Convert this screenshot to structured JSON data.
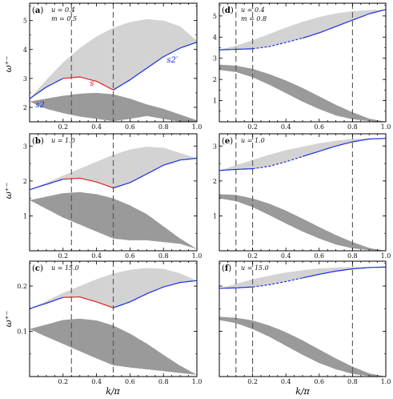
{
  "chart_data": {
    "type": "area",
    "x_label": "k/π",
    "y_label": "ω⁺⁻",
    "xlim": [
      0,
      1
    ],
    "x_ticks": [
      "0.2",
      "0.4",
      "0.6",
      "0.8",
      "1.0"
    ],
    "colors": {
      "upper_band": "#d3d3d3",
      "lower_band": "#9a9a9a",
      "boundary_red": "#e0221c",
      "boundary_blue": "#1a2ee0",
      "dashed_lines": "#555555"
    },
    "panels": [
      {
        "label": "(a)",
        "param_lines": [
          "u = 0.4",
          "m = 0.5"
        ],
        "ylim": [
          1.5,
          5.6
        ],
        "y_ticks": [
          2,
          3,
          4,
          5
        ],
        "vlines": [
          0.25,
          0.5
        ],
        "upper_band": {
          "x": [
            0.0,
            0.1,
            0.2,
            0.3,
            0.4,
            0.5,
            0.6,
            0.7,
            0.8,
            0.9,
            1.0
          ],
          "lower": [
            2.3,
            2.7,
            3.0,
            3.05,
            2.9,
            2.6,
            2.95,
            3.35,
            3.75,
            4.05,
            4.25
          ],
          "upper": [
            2.3,
            2.95,
            3.55,
            4.05,
            4.45,
            4.75,
            4.95,
            5.05,
            5.0,
            4.8,
            4.3
          ]
        },
        "lower_band": {
          "x": [
            0.0,
            0.1,
            0.2,
            0.3,
            0.4,
            0.5,
            0.6,
            0.7,
            0.8,
            0.9,
            1.0
          ],
          "lower": [
            2.2,
            1.95,
            1.8,
            1.68,
            1.6,
            1.52,
            1.6,
            1.7,
            1.6,
            1.5,
            1.5
          ],
          "upper": [
            2.2,
            2.3,
            2.4,
            2.47,
            2.5,
            2.45,
            2.3,
            2.1,
            1.95,
            1.75,
            1.55
          ]
        },
        "annotations": [
          {
            "text": "s2",
            "color": "blue"
          },
          {
            "text": "s",
            "color": "red"
          },
          {
            "text": "s2′",
            "color": "blue"
          }
        ]
      },
      {
        "label": "(b)",
        "param_lines": [
          "u = 1.0"
        ],
        "ylim": [
          0.0,
          3.35
        ],
        "y_ticks": [
          1,
          2,
          3
        ],
        "vlines": [
          0.25,
          0.5
        ],
        "upper_band": {
          "x": [
            0.0,
            0.1,
            0.2,
            0.3,
            0.4,
            0.5,
            0.6,
            0.7,
            0.8,
            0.9,
            1.0
          ],
          "lower": [
            1.75,
            1.9,
            2.05,
            2.08,
            1.97,
            1.8,
            1.95,
            2.2,
            2.45,
            2.6,
            2.65
          ],
          "upper": [
            1.75,
            1.95,
            2.15,
            2.35,
            2.55,
            2.75,
            2.9,
            2.98,
            2.95,
            2.8,
            2.65
          ]
        },
        "lower_band": {
          "x": [
            0.0,
            0.1,
            0.2,
            0.3,
            0.4,
            0.5,
            0.6,
            0.7,
            0.8,
            0.9,
            1.0
          ],
          "lower": [
            1.45,
            1.2,
            0.95,
            0.75,
            0.55,
            0.35,
            0.3,
            0.3,
            0.25,
            0.2,
            0.05
          ],
          "upper": [
            1.45,
            1.55,
            1.65,
            1.68,
            1.62,
            1.5,
            1.3,
            1.05,
            0.7,
            0.35,
            0.05
          ]
        },
        "annotations": []
      },
      {
        "label": "(c)",
        "param_lines": [
          "u = 15.0"
        ],
        "ylim": [
          0.0,
          0.255
        ],
        "y_ticks": [
          0.1,
          0.2
        ],
        "y_tick_labels": [
          "0.1",
          "0.2"
        ],
        "vlines": [
          0.25,
          0.5
        ],
        "upper_band": {
          "x": [
            0.0,
            0.1,
            0.2,
            0.3,
            0.4,
            0.5,
            0.6,
            0.7,
            0.8,
            0.9,
            1.0
          ],
          "lower": [
            0.15,
            0.162,
            0.175,
            0.176,
            0.165,
            0.152,
            0.165,
            0.183,
            0.198,
            0.208,
            0.212
          ],
          "upper": [
            0.15,
            0.167,
            0.185,
            0.2,
            0.215,
            0.228,
            0.236,
            0.24,
            0.238,
            0.228,
            0.212
          ]
        },
        "lower_band": {
          "x": [
            0.0,
            0.1,
            0.2,
            0.3,
            0.4,
            0.5,
            0.6,
            0.7,
            0.8,
            0.9,
            1.0
          ],
          "lower": [
            0.105,
            0.088,
            0.072,
            0.056,
            0.04,
            0.025,
            0.02,
            0.016,
            0.012,
            0.008,
            0.004
          ],
          "upper": [
            0.105,
            0.115,
            0.125,
            0.128,
            0.124,
            0.113,
            0.095,
            0.073,
            0.048,
            0.024,
            0.004
          ]
        },
        "annotations": []
      },
      {
        "label": "(d)",
        "param_lines": [
          "u = 0.4",
          "m = 0.8"
        ],
        "ylim": [
          0.0,
          5.6
        ],
        "y_ticks": [
          1,
          2,
          3,
          4,
          5
        ],
        "vlines": [
          0.1,
          0.2,
          0.8
        ],
        "upper_band": {
          "x": [
            0.0,
            0.1,
            0.2,
            0.3,
            0.4,
            0.5,
            0.6,
            0.7,
            0.8,
            0.9,
            1.0
          ],
          "lower": [
            3.4,
            3.42,
            3.45,
            3.55,
            3.75,
            3.95,
            4.2,
            4.5,
            4.8,
            5.1,
            5.3
          ],
          "upper": [
            3.4,
            3.6,
            3.85,
            4.15,
            4.45,
            4.72,
            4.95,
            5.12,
            5.22,
            5.28,
            5.3
          ]
        },
        "lower_band": {
          "x": [
            0.0,
            0.1,
            0.2,
            0.3,
            0.4,
            0.5,
            0.6,
            0.7,
            0.8,
            0.9,
            1.0
          ],
          "lower": [
            2.45,
            2.35,
            2.1,
            1.75,
            1.35,
            0.95,
            0.6,
            0.3,
            0.12,
            0.03,
            0.0
          ],
          "upper": [
            2.7,
            2.65,
            2.5,
            2.25,
            1.95,
            1.6,
            1.2,
            0.8,
            0.45,
            0.15,
            0.0
          ]
        },
        "annotations": []
      },
      {
        "label": "(e)",
        "param_lines": [
          "u = 1.0"
        ],
        "ylim": [
          0.0,
          3.35
        ],
        "y_ticks": [
          1,
          2,
          3
        ],
        "vlines": [
          0.1,
          0.2,
          0.8
        ],
        "upper_band": {
          "x": [
            0.0,
            0.1,
            0.2,
            0.3,
            0.4,
            0.5,
            0.6,
            0.7,
            0.8,
            0.9,
            1.0
          ],
          "lower": [
            2.3,
            2.33,
            2.35,
            2.42,
            2.55,
            2.7,
            2.85,
            3.0,
            3.12,
            3.2,
            3.22
          ],
          "upper": [
            2.3,
            2.45,
            2.6,
            2.75,
            2.88,
            2.98,
            3.08,
            3.15,
            3.2,
            3.22,
            3.22
          ]
        },
        "lower_band": {
          "x": [
            0.0,
            0.1,
            0.2,
            0.3,
            0.4,
            0.5,
            0.6,
            0.7,
            0.8,
            0.9,
            1.0
          ],
          "lower": [
            1.5,
            1.42,
            1.25,
            1.02,
            0.78,
            0.55,
            0.35,
            0.18,
            0.07,
            0.02,
            0.0
          ],
          "upper": [
            1.62,
            1.6,
            1.5,
            1.35,
            1.15,
            0.92,
            0.68,
            0.45,
            0.25,
            0.08,
            0.0
          ]
        },
        "annotations": []
      },
      {
        "label": "(f)",
        "param_lines": [
          "u = 15.0"
        ],
        "ylim": [
          0.0,
          0.255
        ],
        "y_ticks": [
          0.1,
          0.2
        ],
        "y_tick_labels": [
          "",
          ""
        ],
        "vlines": [
          0.1,
          0.2,
          0.8
        ],
        "upper_band": {
          "x": [
            0.0,
            0.1,
            0.2,
            0.3,
            0.4,
            0.5,
            0.6,
            0.7,
            0.8,
            0.9,
            1.0
          ],
          "lower": [
            0.195,
            0.196,
            0.198,
            0.203,
            0.21,
            0.218,
            0.226,
            0.233,
            0.238,
            0.241,
            0.242
          ],
          "upper": [
            0.195,
            0.205,
            0.215,
            0.223,
            0.23,
            0.235,
            0.239,
            0.241,
            0.242,
            0.242,
            0.242
          ]
        },
        "lower_band": {
          "x": [
            0.0,
            0.1,
            0.2,
            0.3,
            0.4,
            0.5,
            0.6,
            0.7,
            0.8,
            0.9,
            1.0
          ],
          "lower": [
            0.125,
            0.118,
            0.105,
            0.088,
            0.068,
            0.048,
            0.03,
            0.016,
            0.006,
            0.001,
            0.0
          ],
          "upper": [
            0.132,
            0.13,
            0.124,
            0.113,
            0.098,
            0.08,
            0.06,
            0.04,
            0.022,
            0.007,
            0.0
          ]
        },
        "annotations": []
      }
    ]
  }
}
